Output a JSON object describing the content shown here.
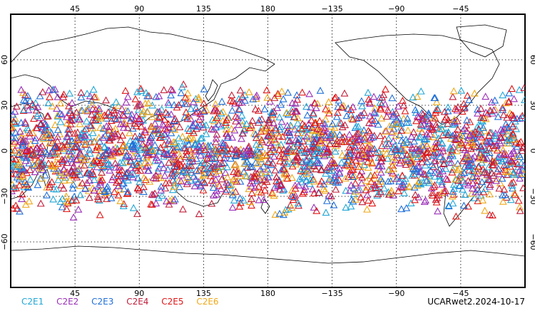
{
  "map": {
    "top_lon_labels": [
      "45",
      "90",
      "135",
      "180",
      "−135",
      "−90",
      "−45"
    ],
    "bottom_lon_labels": [
      "45",
      "90",
      "135",
      "180",
      "−135",
      "−90",
      "−45"
    ],
    "lat_labels": [
      "60",
      "30",
      "0",
      "−30",
      "−60"
    ],
    "projection_center_lon": 180,
    "lat_range": [
      -90,
      90
    ],
    "lon_range": [
      0,
      360
    ],
    "grid": true,
    "marker": "open-triangle",
    "obs_band_lat": [
      -45,
      45
    ]
  },
  "legend": [
    {
      "label": "C2E1",
      "color": "#22a7d6"
    },
    {
      "label": "C2E2",
      "color": "#9b2fb8"
    },
    {
      "label": "C2E3",
      "color": "#1f6fd9"
    },
    {
      "label": "C2E4",
      "color": "#c01e3a"
    },
    {
      "label": "C2E5",
      "color": "#e01616"
    },
    {
      "label": "C2E6",
      "color": "#f0a818"
    }
  ],
  "product_label": "UCARwet2.2024-10-17"
}
